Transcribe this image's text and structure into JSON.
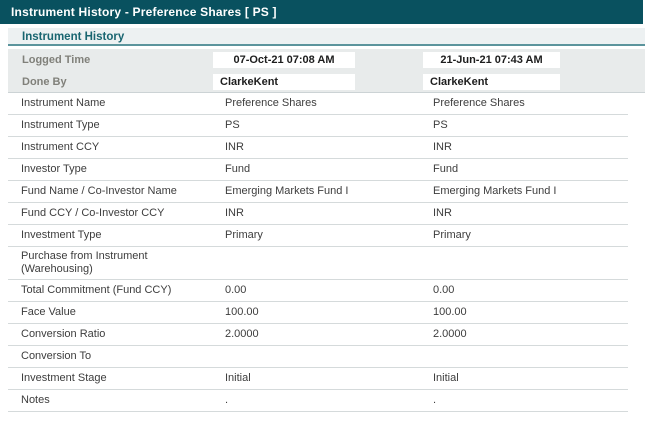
{
  "title_bar": {
    "title": "Instrument History - Preference Shares [ PS ]"
  },
  "section": {
    "title": "Instrument History"
  },
  "meta_rows": [
    {
      "label": "Logged Time",
      "values": [
        "07-Oct-21 07:08 AM",
        "21-Jun-21 07:43 AM"
      ]
    },
    {
      "label": "Done By",
      "values": [
        "ClarkeKent",
        "ClarkeKent"
      ]
    }
  ],
  "table": {
    "rows": [
      {
        "label": "Instrument Name",
        "values": [
          "Preference Shares",
          "Preference Shares"
        ]
      },
      {
        "label": "Instrument Type",
        "values": [
          "PS",
          "PS"
        ]
      },
      {
        "label": "Instrument CCY",
        "values": [
          "INR",
          "INR"
        ]
      },
      {
        "label": "Investor Type",
        "values": [
          "Fund",
          "Fund"
        ]
      },
      {
        "label": "Fund Name / Co-Investor Name",
        "values": [
          "Emerging Markets Fund I",
          "Emerging Markets Fund I"
        ]
      },
      {
        "label": "Fund CCY / Co-Investor CCY",
        "values": [
          "INR",
          "INR"
        ]
      },
      {
        "label": "Investment Type",
        "values": [
          "Primary",
          "Primary"
        ]
      },
      {
        "label": "Purchase from Instrument (Warehousing)",
        "values": [
          "",
          ""
        ]
      },
      {
        "label": "Total Commitment (Fund CCY)",
        "values": [
          "0.00",
          "0.00"
        ]
      },
      {
        "label": "Face Value",
        "values": [
          "100.00",
          "100.00"
        ]
      },
      {
        "label": "Conversion Ratio",
        "values": [
          "2.0000",
          "2.0000"
        ]
      },
      {
        "label": "Conversion To",
        "values": [
          "",
          ""
        ]
      },
      {
        "label": "Investment Stage",
        "values": [
          "Initial",
          "Initial"
        ]
      },
      {
        "label": "Notes",
        "values": [
          ".",
          "."
        ]
      }
    ]
  },
  "colors": {
    "header_teal": "#09515f",
    "section_bg": "#edf1f2",
    "section_text": "#196570",
    "section_border": "#5b949c",
    "panel_bg": "#e8ebeb",
    "separator": "#d5dadb",
    "value_box_bg": "#ffffff"
  }
}
